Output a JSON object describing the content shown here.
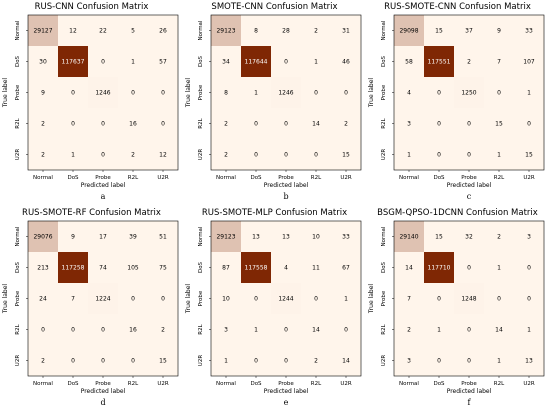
{
  "colors": {
    "cmap_low": "#fff5eb",
    "cmap_high": "#7f2704",
    "text_dark": "#000000",
    "text_light": "#ffffff"
  },
  "chart_data": [
    {
      "type": "heatmap",
      "title": "RUS-CNN Confusion Matrix",
      "xlabel": "Predicted label",
      "ylabel": "True label",
      "x_categories": [
        "Normal",
        "DoS",
        "Probe",
        "R2L",
        "U2R"
      ],
      "y_categories": [
        "Normal",
        "DoS",
        "Probe",
        "R2L",
        "U2R"
      ],
      "values": [
        [
          29127,
          12,
          22,
          5,
          26
        ],
        [
          30,
          117637,
          0,
          1,
          57
        ],
        [
          9,
          0,
          1246,
          0,
          0
        ],
        [
          2,
          0,
          0,
          16,
          0
        ],
        [
          2,
          1,
          0,
          2,
          12
        ]
      ],
      "caption": "a"
    },
    {
      "type": "heatmap",
      "title": "SMOTE-CNN Confusion Matrix",
      "xlabel": "Predicted label",
      "ylabel": "True label",
      "x_categories": [
        "Normal",
        "DoS",
        "Probe",
        "R2L",
        "U2R"
      ],
      "y_categories": [
        "Normal",
        "DoS",
        "Probe",
        "R2L",
        "U2R"
      ],
      "values": [
        [
          29123,
          8,
          28,
          2,
          31
        ],
        [
          34,
          117644,
          0,
          1,
          46
        ],
        [
          8,
          1,
          1246,
          0,
          0
        ],
        [
          2,
          0,
          0,
          14,
          2
        ],
        [
          2,
          0,
          0,
          0,
          15
        ]
      ],
      "caption": "b"
    },
    {
      "type": "heatmap",
      "title": "RUS-SMOTE-CNN Confusion Matrix",
      "xlabel": "Predicted label",
      "ylabel": "True label",
      "x_categories": [
        "Normal",
        "DoS",
        "Probe",
        "R2L",
        "U2R"
      ],
      "y_categories": [
        "Normal",
        "DoS",
        "Probe",
        "R2L",
        "U2R"
      ],
      "values": [
        [
          29098,
          15,
          37,
          9,
          33
        ],
        [
          58,
          117551,
          2,
          7,
          107
        ],
        [
          4,
          0,
          1250,
          0,
          1
        ],
        [
          3,
          0,
          0,
          15,
          0
        ],
        [
          1,
          0,
          0,
          1,
          15
        ]
      ],
      "caption": "c"
    },
    {
      "type": "heatmap",
      "title": "RUS-SMOTE-RF Confusion Matrix",
      "xlabel": "Predicted label",
      "ylabel": "True label",
      "x_categories": [
        "Normal",
        "DoS",
        "Probe",
        "R2L",
        "U2R"
      ],
      "y_categories": [
        "Normal",
        "DoS",
        "Probe",
        "R2L",
        "U2R"
      ],
      "values": [
        [
          29076,
          9,
          17,
          39,
          51
        ],
        [
          213,
          117258,
          74,
          105,
          75
        ],
        [
          24,
          7,
          1224,
          0,
          0
        ],
        [
          0,
          0,
          0,
          16,
          2
        ],
        [
          2,
          0,
          0,
          0,
          15
        ]
      ],
      "caption": "d"
    },
    {
      "type": "heatmap",
      "title": "RUS-SMOTE-MLP Confusion Matrix",
      "xlabel": "Predicted label",
      "ylabel": "True label",
      "x_categories": [
        "Normal",
        "DoS",
        "Probe",
        "R2L",
        "U2R"
      ],
      "y_categories": [
        "Normal",
        "DoS",
        "Probe",
        "R2L",
        "U2R"
      ],
      "values": [
        [
          29123,
          13,
          13,
          10,
          33
        ],
        [
          87,
          117558,
          4,
          11,
          67
        ],
        [
          10,
          0,
          1244,
          0,
          1
        ],
        [
          3,
          1,
          0,
          14,
          0
        ],
        [
          1,
          0,
          0,
          2,
          14
        ]
      ],
      "caption": "e"
    },
    {
      "type": "heatmap",
      "title": "BSGM-QPSO-1DCNN Confusion Matrix",
      "xlabel": "Predicted label",
      "ylabel": "True label",
      "x_categories": [
        "Normal",
        "DoS",
        "Probe",
        "R2L",
        "U2R"
      ],
      "y_categories": [
        "Normal",
        "DoS",
        "Probe",
        "R2L",
        "U2R"
      ],
      "values": [
        [
          29140,
          15,
          32,
          2,
          3
        ],
        [
          14,
          117710,
          0,
          1,
          0
        ],
        [
          7,
          0,
          1248,
          0,
          0
        ],
        [
          2,
          1,
          0,
          14,
          1
        ],
        [
          3,
          0,
          0,
          1,
          13
        ]
      ],
      "caption": "f"
    }
  ]
}
